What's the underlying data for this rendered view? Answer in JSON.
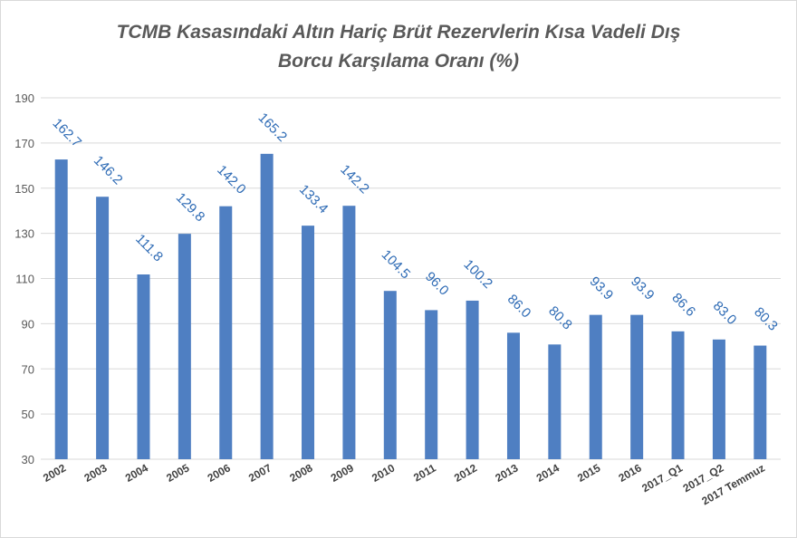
{
  "chart_data": {
    "type": "bar",
    "title_lines": [
      "TCMB Kasasındaki Altın Hariç Brüt Rezervlerin Kısa Vadeli Dış",
      "Borcu Karşılama Oranı (%)"
    ],
    "categories": [
      "2002",
      "2003",
      "2004",
      "2005",
      "2006",
      "2007",
      "2008",
      "2009",
      "2010",
      "2011",
      "2012",
      "2013",
      "2014",
      "2015",
      "2016",
      "2017_Q1",
      "2017_Q2",
      "2017 Temmuz"
    ],
    "values": [
      162.7,
      146.2,
      111.8,
      129.8,
      142.0,
      165.2,
      133.4,
      142.2,
      104.5,
      96.0,
      100.2,
      86.0,
      80.8,
      93.9,
      93.9,
      86.6,
      83.0,
      80.3
    ],
    "data_labels": [
      "162.7",
      "146.2",
      "111.8",
      "129.8",
      "142.0",
      "165.2",
      "133.4",
      "142.2",
      "104.5",
      "96.0",
      "100.2",
      "86.0",
      "80.8",
      "93.9",
      "93.9",
      "86.6",
      "83.0",
      "80.3"
    ],
    "yticks": [
      30,
      50,
      70,
      90,
      110,
      130,
      150,
      170,
      190
    ],
    "ylim": [
      30,
      190
    ],
    "grid": true,
    "colors": {
      "bar": "#4f7fc2",
      "label": "#2e6bb5",
      "grid": "#d9d9d9"
    }
  }
}
